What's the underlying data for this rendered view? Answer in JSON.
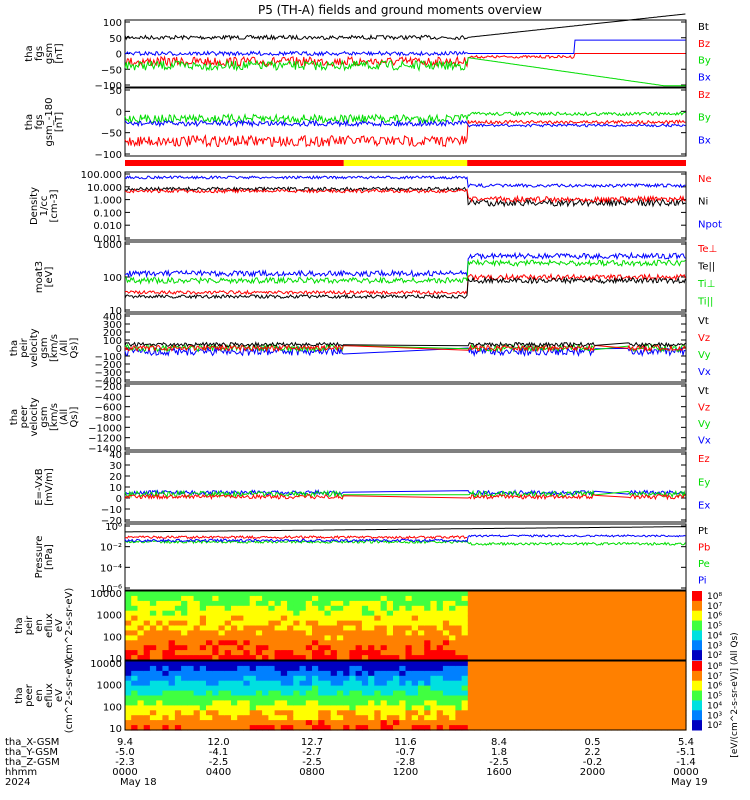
{
  "title": "P5 (TH-A) fields and ground moments overview",
  "colors": {
    "black": "#000000",
    "red": "#ff0000",
    "green": "#00dd00",
    "blue": "#0000ff",
    "yellow": "#ffff00"
  },
  "x_tick_labels": {
    "tha_X-GSM": [
      "9.4",
      "12.0",
      "12.7",
      "11.6",
      "8.4",
      "0.5",
      "5.4"
    ],
    "tha_Y-GSM": [
      "-5.0",
      "-4.1",
      "-2.7",
      "-0.7",
      "1.8",
      "2.2",
      "-5.1"
    ],
    "tha_Z-GSM": [
      "-2.3",
      "-2.5",
      "-2.5",
      "-2.8",
      "-2.5",
      "-0.2",
      "-1.4"
    ],
    "hhmm": [
      "0000",
      "0400",
      "0800",
      "1200",
      "1600",
      "2000",
      "0000"
    ]
  },
  "row_labels": [
    "tha_X-GSM",
    "tha_Y-GSM",
    "tha_Z-GSM",
    "hhmm",
    "2024"
  ],
  "date_labels": [
    "May 18",
    "May 19"
  ],
  "chart_data": [
    {
      "type": "line",
      "ylabel": "tha fgs gsm [nT]",
      "ylim": [
        -100,
        100
      ],
      "yticks": [
        "100",
        "50",
        "0",
        "−50",
        "−100"
      ],
      "legend": [
        {
          "name": "Bt",
          "color": "#000000"
        },
        {
          "name": "Bz",
          "color": "#ff0000"
        },
        {
          "name": "By",
          "color": "#00dd00"
        },
        {
          "name": "Bx",
          "color": "#0000ff"
        }
      ]
    },
    {
      "type": "line",
      "ylabel": "tha fgs gsm_-180 [nT]",
      "ylim": [
        -125,
        50
      ],
      "yticks": [
        "50",
        "0",
        "−50",
        "−100"
      ],
      "legend": [
        {
          "name": "Bz",
          "color": "#ff0000"
        },
        {
          "name": "By",
          "color": "#00dd00"
        },
        {
          "name": "Bx",
          "color": "#0000ff"
        }
      ]
    },
    {
      "type": "line",
      "ylabel": "Density 1/cc [cm-3]",
      "yscale": "log",
      "yticks": [
        "100.000",
        "10.000",
        "1.000",
        "0.100",
        "0.010",
        "0.001"
      ],
      "legend": [
        {
          "name": "Ne",
          "color": "#ff0000"
        },
        {
          "name": "Ni",
          "color": "#000000"
        },
        {
          "name": "Npot",
          "color": "#0000ff"
        }
      ]
    },
    {
      "type": "line",
      "ylabel": "moat3 [eV]",
      "yscale": "log",
      "yticks": [
        "1000",
        "100",
        "10"
      ],
      "legend": [
        {
          "name": "Te⊥",
          "color": "#ff0000"
        },
        {
          "name": "Te||",
          "color": "#000000"
        },
        {
          "name": "Ti⊥",
          "color": "#00dd00"
        },
        {
          "name": "Ti||",
          "color": "#00dd00"
        }
      ]
    },
    {
      "type": "line",
      "ylabel": "tha peir velocity gsm [km/s (All Qs)]",
      "ylim": [
        -400,
        400
      ],
      "yticks": [
        "400",
        "300",
        "200",
        "100",
        "0",
        "−100",
        "−200",
        "−300",
        "−400"
      ],
      "legend": [
        {
          "name": "Vt",
          "color": "#000000"
        },
        {
          "name": "Vz",
          "color": "#ff0000"
        },
        {
          "name": "Vy",
          "color": "#00dd00"
        },
        {
          "name": "Vx",
          "color": "#0000ff"
        }
      ]
    },
    {
      "type": "line",
      "ylabel": "tha peer velocity gsm [km/s (All Qs)]",
      "ylim": [
        -1400,
        -200
      ],
      "yticks": [
        "−200",
        "−400",
        "−600",
        "−800",
        "−1000",
        "−1200",
        "−1400"
      ],
      "legend": [
        {
          "name": "Vt",
          "color": "#000000"
        },
        {
          "name": "Vz",
          "color": "#ff0000"
        },
        {
          "name": "Vy",
          "color": "#00dd00"
        },
        {
          "name": "Vx",
          "color": "#0000ff"
        }
      ]
    },
    {
      "type": "line",
      "ylabel": "E=-VxB [mV/m]",
      "ylim": [
        -20,
        40
      ],
      "yticks": [
        "40",
        "30",
        "20",
        "10",
        "0",
        "−10",
        "−20"
      ],
      "legend": [
        {
          "name": "Ez",
          "color": "#ff0000"
        },
        {
          "name": "Ey",
          "color": "#00dd00"
        },
        {
          "name": "Ex",
          "color": "#0000ff"
        }
      ]
    },
    {
      "type": "line",
      "ylabel": "Pressure [nPa]",
      "yscale": "log",
      "yticks": [
        "10⁰",
        "10⁻²",
        "10⁻⁴",
        "10⁻⁶"
      ],
      "legend": [
        {
          "name": "Pt",
          "color": "#000000"
        },
        {
          "name": "Pb",
          "color": "#ff0000"
        },
        {
          "name": "Pe",
          "color": "#00dd00"
        },
        {
          "name": "Pi",
          "color": "#0000ff"
        }
      ]
    },
    {
      "type": "heatmap",
      "ylabel": "tha peir en eflux eV (cm^2-s-sr-eV)",
      "yscale": "log",
      "yticks": [
        "10000",
        "1000",
        "100",
        "10"
      ],
      "colorbar_ticks": [
        "10⁸",
        "10⁷",
        "10⁶",
        "10⁵",
        "10⁴",
        "10³",
        "10²"
      ]
    },
    {
      "type": "heatmap",
      "ylabel": "tha peer en eflux eV (cm^2-s-sr-eV)",
      "yscale": "log",
      "yticks": [
        "10000",
        "1000",
        "100",
        "10"
      ],
      "colorbar_ticks": [
        "10⁸",
        "10⁷",
        "10⁶",
        "10⁵",
        "10⁴",
        "10³",
        "10²"
      ]
    }
  ],
  "colorbar_label": "[eV/(cm^2-s-sr-eV)] (All Qs)"
}
